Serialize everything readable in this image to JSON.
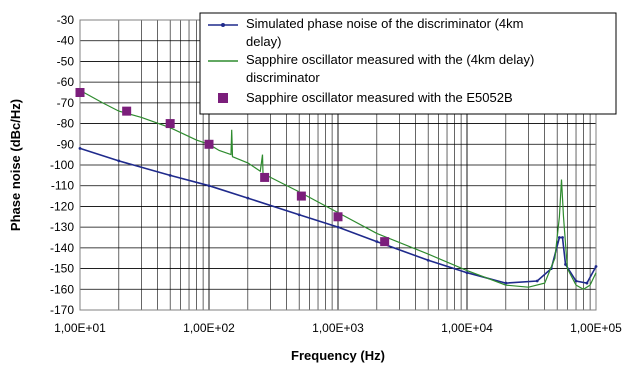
{
  "chart_data": {
    "type": "line",
    "xscale": "log",
    "xlim": [
      10,
      100000
    ],
    "ylim": [
      -170,
      -30
    ],
    "y_ticks": [
      -30,
      -40,
      -50,
      -60,
      -70,
      -80,
      -90,
      -100,
      -110,
      -120,
      -130,
      -140,
      -150,
      -160,
      -170
    ],
    "x_tick_values": [
      10,
      100,
      1000,
      10000,
      100000
    ],
    "x_tick_labels": [
      "1,00E+01",
      "1,00E+02",
      "1,00E+03",
      "1,00E+04",
      "1,00E+05"
    ],
    "xlabel": "Frequency (Hz)",
    "ylabel": "Phase noise (dBc/Hz)",
    "grid": true,
    "legend_position": "top-right",
    "series": [
      {
        "name": "Simulated phase noise of the discriminator (4km delay)",
        "legend_lines": [
          "Simulated phase noise of the discriminator (4km",
          "delay)"
        ],
        "color": "#1F2A8C",
        "style": "line-markers",
        "points": [
          [
            10,
            -92
          ],
          [
            20,
            -98
          ],
          [
            50,
            -105
          ],
          [
            100,
            -110
          ],
          [
            200,
            -116
          ],
          [
            500,
            -124
          ],
          [
            1000,
            -130
          ],
          [
            2000,
            -137
          ],
          [
            5000,
            -146
          ],
          [
            10000,
            -152
          ],
          [
            20000,
            -157
          ],
          [
            35000,
            -156
          ],
          [
            45000,
            -150
          ],
          [
            52000,
            -135
          ],
          [
            55000,
            -135
          ],
          [
            58000,
            -148
          ],
          [
            70000,
            -156
          ],
          [
            85000,
            -157
          ],
          [
            100000,
            -149
          ]
        ]
      },
      {
        "name": "Sapphire oscillator measured with the (4km delay) discriminator",
        "legend_lines": [
          "Sapphire oscillator measured with the (4km delay)",
          "discriminator"
        ],
        "color": "#2E8B2E",
        "style": "line",
        "points": [
          [
            10,
            -64
          ],
          [
            15,
            -70
          ],
          [
            20,
            -74
          ],
          [
            30,
            -77
          ],
          [
            50,
            -82
          ],
          [
            80,
            -88
          ],
          [
            100,
            -90
          ],
          [
            120,
            -93
          ],
          [
            148,
            -95
          ],
          [
            150,
            -83
          ],
          [
            152,
            -96
          ],
          [
            200,
            -99
          ],
          [
            250,
            -103
          ],
          [
            260,
            -95
          ],
          [
            262,
            -104
          ],
          [
            300,
            -106
          ],
          [
            500,
            -113
          ],
          [
            1000,
            -123
          ],
          [
            2000,
            -133
          ],
          [
            5000,
            -143
          ],
          [
            10000,
            -151
          ],
          [
            20000,
            -158
          ],
          [
            30000,
            -159
          ],
          [
            40000,
            -157
          ],
          [
            48000,
            -145
          ],
          [
            52000,
            -125
          ],
          [
            54000,
            -107
          ],
          [
            56000,
            -125
          ],
          [
            60000,
            -150
          ],
          [
            70000,
            -158
          ],
          [
            80000,
            -160
          ],
          [
            90000,
            -158
          ],
          [
            100000,
            -152
          ]
        ]
      },
      {
        "name": "Sapphire oscillator measured with the E5052B",
        "color": "#7B1E7B",
        "style": "markers",
        "points": [
          [
            10,
            -65
          ],
          [
            23,
            -74
          ],
          [
            50,
            -80
          ],
          [
            100,
            -90
          ],
          [
            270,
            -106
          ],
          [
            520,
            -115
          ],
          [
            1000,
            -125
          ],
          [
            2300,
            -137
          ]
        ]
      }
    ]
  }
}
